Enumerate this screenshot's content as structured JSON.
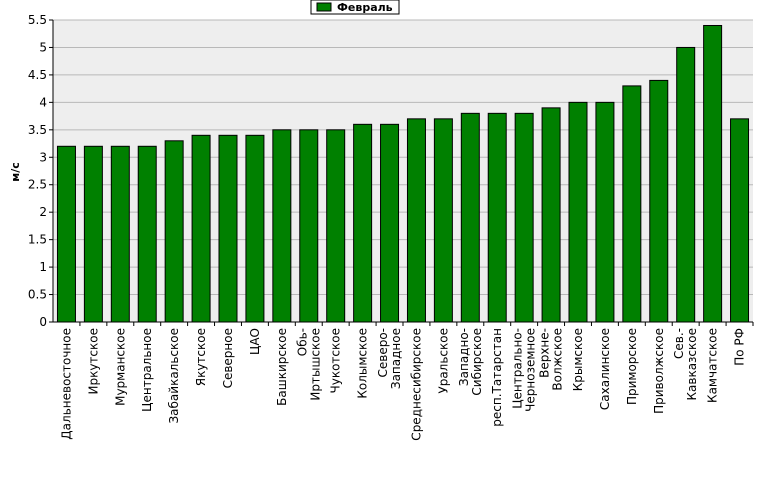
{
  "chart_data": {
    "type": "bar",
    "title": "",
    "xlabel": "",
    "ylabel": "м/с",
    "ylim": [
      0,
      5.5
    ],
    "ytick_step": 0.5,
    "yticks": [
      "0",
      "0.5",
      "1",
      "1.5",
      "2",
      "2.5",
      "3",
      "3.5",
      "4",
      "4.5",
      "5",
      "5.5"
    ],
    "grid": true,
    "legend_position": "top-center",
    "categories": [
      "Дальневосточное",
      "Иркутское",
      "Мурманское",
      "Центральное",
      "Забайкальское",
      "Якутское",
      "Северное",
      "ЦАО",
      "Башкирское",
      "Обь-\nИртышское",
      "Чукотское",
      "Колымское",
      "Северо-\nЗападное",
      "Среднесибирское",
      "Уральское",
      "Западно-\nСибирское",
      "респ.Татарстан",
      "Центрально-\nЧерноземное",
      "Верхне-\nВолжское",
      "Крымское",
      "Сахалинское",
      "Приморское",
      "Приволжское",
      "Сев.-\nКавказское",
      "Камчатское",
      "По РФ"
    ],
    "series": [
      {
        "name": "Февраль",
        "color": "#008000",
        "values": [
          3.2,
          3.2,
          3.2,
          3.2,
          3.3,
          3.4,
          3.4,
          3.4,
          3.5,
          3.5,
          3.5,
          3.6,
          3.6,
          3.7,
          3.7,
          3.8,
          3.8,
          3.8,
          3.9,
          4.0,
          4.0,
          4.3,
          4.4,
          5.0,
          5.4,
          3.7
        ]
      }
    ],
    "colors": {
      "plot_background": "#eeeeee",
      "grid": "#b8b8b8",
      "bar_outline": "#000000"
    }
  }
}
